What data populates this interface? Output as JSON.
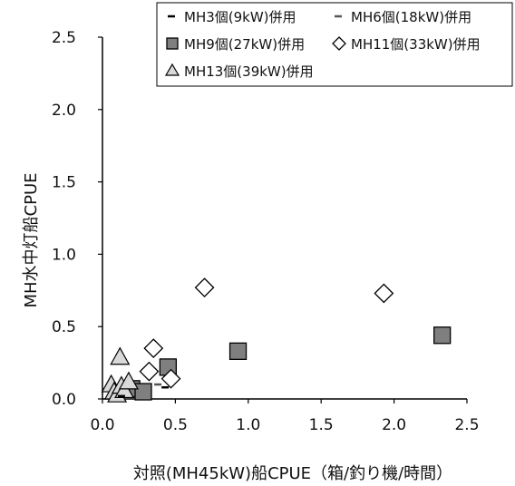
{
  "chart_data": {
    "type": "scatter",
    "title": "",
    "xlabel": "対照(MH45kW)船CPUE（箱/釣り機/時間）",
    "ylabel": "MH水中灯船CPUE",
    "xlim": [
      0,
      2.5
    ],
    "ylim": [
      0,
      2.5
    ],
    "x_ticks": [
      "0.0",
      "0.5",
      "1.0",
      "1.5",
      "2.0",
      "2.5"
    ],
    "y_ticks": [
      "0.0",
      "0.5",
      "1.0",
      "1.5",
      "2.0",
      "2.5"
    ],
    "grid": false,
    "legend_position": "top-right",
    "series": [
      {
        "name": "MH3個(9kW)併用",
        "marker": "dash",
        "color": "#000000",
        "points": [
          [
            0.43,
            0.08
          ],
          [
            0.13,
            0.02
          ]
        ]
      },
      {
        "name": "MH6個(18kW)併用",
        "marker": "dash",
        "color": "#555555",
        "points": [
          [
            0.38,
            0.1
          ]
        ]
      },
      {
        "name": "MH9個(27kW)併用",
        "marker": "square",
        "color": "#7f7f7f",
        "points": [
          [
            0.2,
            0.07
          ],
          [
            0.28,
            0.05
          ],
          [
            0.45,
            0.22
          ],
          [
            0.93,
            0.33
          ],
          [
            2.33,
            0.44
          ]
        ]
      },
      {
        "name": "MH11個(33kW)併用",
        "marker": "diamond",
        "color": "#ffffff",
        "points": [
          [
            0.32,
            0.19
          ],
          [
            0.35,
            0.35
          ],
          [
            0.47,
            0.14
          ],
          [
            0.7,
            0.77
          ],
          [
            1.93,
            0.73
          ]
        ]
      },
      {
        "name": "MH13個(39kW)併用",
        "marker": "triangle",
        "color": "#d9d9d9",
        "points": [
          [
            0.06,
            0.1
          ],
          [
            0.08,
            0.05
          ],
          [
            0.1,
            0.03
          ],
          [
            0.12,
            0.29
          ],
          [
            0.13,
            0.09
          ],
          [
            0.15,
            0.06
          ],
          [
            0.18,
            0.12
          ]
        ]
      }
    ]
  }
}
